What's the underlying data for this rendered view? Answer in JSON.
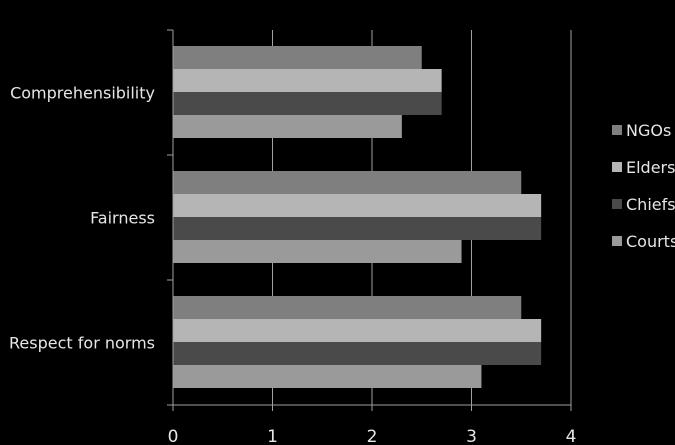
{
  "chart_data": {
    "type": "bar",
    "orientation": "horizontal",
    "categories": [
      "Comprehensibility",
      "Fairness",
      "Respect for norms"
    ],
    "series": [
      {
        "name": "NGOs",
        "values": [
          2.5,
          3.5,
          3.5
        ],
        "color": "#7f7f7f"
      },
      {
        "name": "Elders",
        "values": [
          2.7,
          3.7,
          3.7
        ],
        "color": "#b5b5b5"
      },
      {
        "name": "Chiefs",
        "values": [
          2.7,
          3.7,
          3.7
        ],
        "color": "#4a4a4a"
      },
      {
        "name": "Courts",
        "values": [
          2.3,
          2.9,
          3.1
        ],
        "color": "#9a9a9a"
      }
    ],
    "x_ticks": [
      "0",
      "1",
      "2",
      "3",
      "4"
    ],
    "xlim": [
      0,
      4
    ],
    "title": "",
    "xlabel": "",
    "ylabel": "",
    "grid": "vertical",
    "legend": "right"
  }
}
